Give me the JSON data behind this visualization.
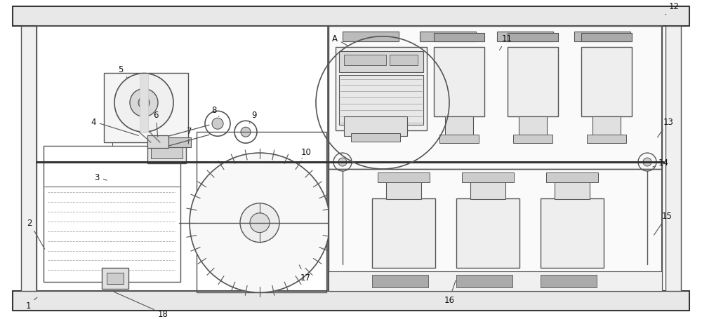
{
  "bg_color": "#ffffff",
  "lc": "#555555",
  "lc2": "#333333",
  "figw": 10.0,
  "figh": 4.56,
  "dpi": 100
}
